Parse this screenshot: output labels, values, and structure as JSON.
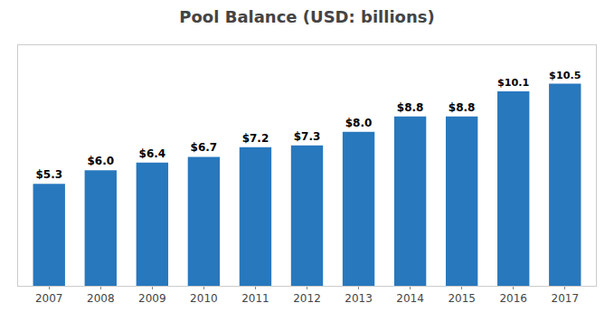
{
  "chart_data": {
    "type": "bar",
    "title": "Pool Balance (USD: billions)",
    "categories": [
      "2007",
      "2008",
      "2009",
      "2010",
      "2011",
      "2012",
      "2013",
      "2014",
      "2015",
      "2016",
      "2017"
    ],
    "values": [
      5.3,
      6.0,
      6.4,
      6.7,
      7.2,
      7.3,
      8.0,
      8.8,
      8.8,
      10.1,
      10.5
    ],
    "value_labels": [
      "$5.3",
      "$6.0",
      "$6.4",
      "$6.7",
      "$7.2",
      "$7.3",
      "$8.0",
      "$8.8",
      "$8.8",
      "$10.1",
      "$10.5"
    ],
    "color": "#2878BE",
    "ylim": [
      0,
      12.5
    ],
    "data_labels": true,
    "tick_labels": "x",
    "grid": false
  }
}
